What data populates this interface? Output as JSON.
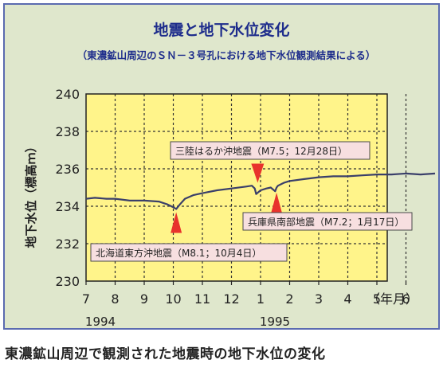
{
  "chart_data": {
    "type": "line",
    "title": "地震と地下水位変化",
    "subtitle": "（東濃鉱山周辺のＳＮ－３号孔における地下水位観測結果による）",
    "ylabel": "地下水位（標高ｍ）",
    "xlabel": "（年月）",
    "ylim": [
      230,
      240
    ],
    "y_ticks": [
      "230",
      "232",
      "234",
      "236",
      "238",
      "240"
    ],
    "x_ticks": [
      "7",
      "8",
      "9",
      "10",
      "11",
      "12",
      "1",
      "2",
      "3",
      "4",
      "5",
      "6"
    ],
    "year_labels": [
      {
        "label": "1994",
        "x": 0
      },
      {
        "label": "1995",
        "x": 6
      }
    ],
    "grid": true,
    "series": [
      {
        "x": [
          0,
          0.3,
          0.7,
          1.0,
          1.5,
          2.0,
          2.5,
          2.8,
          3.0,
          3.1,
          3.2,
          3.4,
          3.7,
          4.0,
          4.5,
          5.0,
          5.5,
          5.7,
          5.8,
          5.85,
          6.0,
          6.2,
          6.35,
          6.5,
          6.55,
          6.6,
          6.8,
          7.0,
          7.5,
          8.0,
          8.5,
          9.0,
          9.5,
          10.0,
          10.5,
          11.0,
          11.5,
          12.0
        ],
        "y": [
          234.4,
          234.45,
          234.4,
          234.4,
          234.3,
          234.3,
          234.25,
          234.1,
          233.95,
          233.85,
          234.05,
          234.4,
          234.6,
          234.7,
          234.85,
          234.95,
          235.05,
          235.1,
          234.95,
          234.65,
          234.85,
          234.95,
          235.0,
          234.8,
          235.0,
          235.1,
          235.25,
          235.35,
          235.45,
          235.55,
          235.6,
          235.6,
          235.65,
          235.7,
          235.7,
          235.75,
          235.7,
          235.75
        ]
      }
    ],
    "annotations": [
      {
        "text": "三陸はるか沖地震（M7.5；12月28日）",
        "x": 5.9,
        "y": 235.0,
        "direction": "down"
      },
      {
        "text": "兵庫県南部地震（M7.2；1月17日）",
        "x": 6.55,
        "y": 234.9,
        "direction": "up"
      },
      {
        "text": "北海道東方沖地震（M8.1；10月4日）",
        "x": 3.1,
        "y": 233.85,
        "direction": "up"
      }
    ]
  },
  "caption": "東濃鉱山周辺で観測された地震時の地下水位の変化",
  "colors": {
    "plot_background": "#fff48a",
    "frame_background": "#dfe7cc",
    "line": "#3a3f6a",
    "marker": "#e8332c",
    "callout_fill": "#f7dfe0",
    "callout_border": "#4a4a4a",
    "title": "#1e2d8c"
  }
}
